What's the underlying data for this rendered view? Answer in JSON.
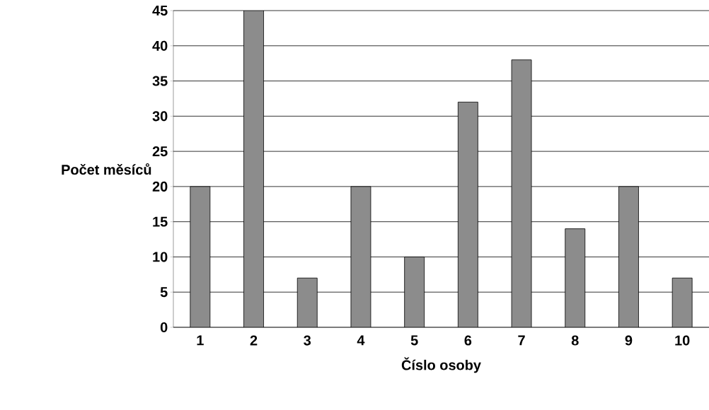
{
  "chart_data": {
    "type": "bar",
    "xlabel": "Číslo osoby",
    "ylabel": "Počet měsíců",
    "categories": [
      "1",
      "2",
      "3",
      "4",
      "5",
      "6",
      "7",
      "8",
      "9",
      "10"
    ],
    "values": [
      20,
      45,
      7,
      20,
      10,
      32,
      38,
      14,
      20,
      7
    ],
    "color": "#8c8c8c",
    "ylim": [
      0,
      45
    ],
    "yticks": [
      0,
      5,
      10,
      15,
      20,
      25,
      30,
      35,
      40,
      45
    ],
    "grid": "y"
  }
}
